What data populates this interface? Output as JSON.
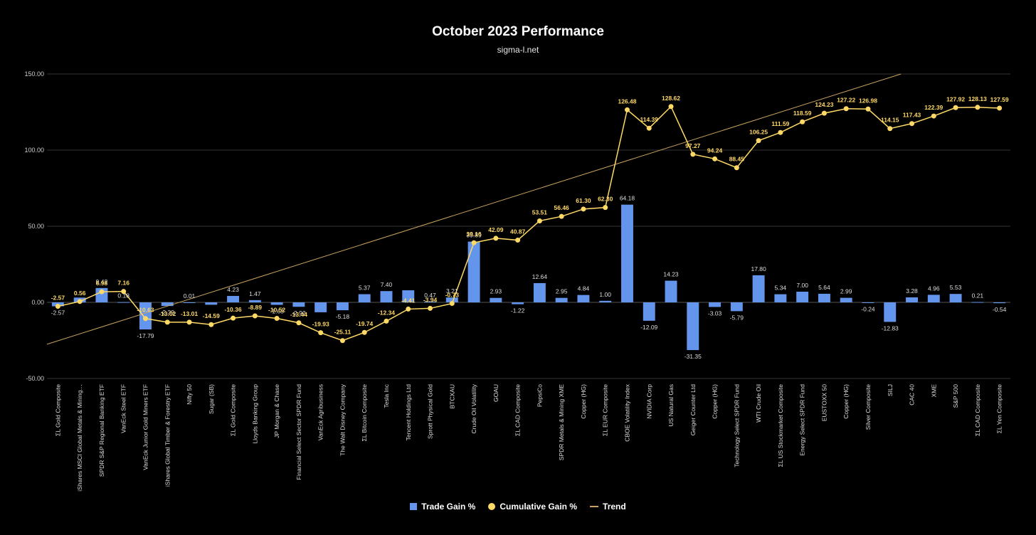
{
  "chart_data": {
    "type": "bar",
    "title": "October 2023 Performance",
    "subtitle": "sigma-l.net",
    "ylim": [
      -50,
      150
    ],
    "y_ticks": [
      "-50.00",
      "0.00",
      "50.00",
      "100.00",
      "150.00"
    ],
    "grid": "horizontal",
    "legend_position": "bottom",
    "categories": [
      "ΣL Gold Composite",
      "iShares MSCI Global Metals & Mining…",
      "SPDR S&P Regional Banking ETF",
      "VanEck Steel ETF",
      "VanEck Junior Gold Miners ETF",
      "iShares Global Timber & Forestry ETF",
      "Nifty 50",
      "Sugar (SB)",
      "ΣL Gold Composite",
      "Lloyds Banking Group",
      "JP Morgan & Chase",
      "Financial Select Sector SPDR Fund",
      "VanEck Agribusiness",
      "The Walt Disney Company",
      "ΣL Bitcoin Composite",
      "Tesla Inc",
      "Tencent Holdings Ltd",
      "Sprott Physical Gold",
      "BTCXAU",
      "Crude Oil Volatility",
      "GOAU",
      "ΣL CAD Composite",
      "PepsiCo",
      "SPDR Metals & Mining XME",
      "Copper (HG)",
      "ΣL EUR Composite",
      "CBOE Volatility Index",
      "NVIDIA Corp",
      "US Natural Gas",
      "Geiger Counter Ltd",
      "Copper (HG)",
      "Technology Select SPDR Fund",
      "WTI Crude Oil",
      "ΣL US Stockmarket Composite",
      "Energy Select SPDR Fund",
      "EUSTOXX 50",
      "Copper (HG)",
      "Silver Composite",
      "SILJ",
      "CAC 40",
      "XME",
      "S&P 500",
      "ΣL CAD Composite",
      "ΣL Yen Composite"
    ],
    "series": [
      {
        "name": "Trade Gain %",
        "type": "bar",
        "color": "#6495ED",
        "values": [
          -2.57,
          3.13,
          9.42,
          0.18,
          -17.79,
          -2.39,
          0.01,
          -1.57,
          4.23,
          1.47,
          -1.63,
          -2.92,
          -6.5,
          -5.18,
          5.37,
          7.4,
          7.93,
          0.47,
          3.21,
          39.89,
          2.93,
          -1.22,
          12.64,
          2.95,
          4.84,
          1.0,
          64.18,
          -12.09,
          14.23,
          -31.35,
          -3.03,
          -5.79,
          17.8,
          5.34,
          7.0,
          5.64,
          2.99,
          -0.24,
          -12.83,
          3.28,
          4.96,
          5.53,
          0.21,
          -0.54
        ],
        "labels": [
          "-2.57",
          "",
          "9.42",
          "0.18",
          "-17.79",
          "-2.39",
          "0.01",
          "",
          "4.23",
          "1.47",
          "-1.63",
          "-2.92",
          "",
          "-5.18",
          "5.37",
          "7.40",
          "",
          "0.47",
          "3.21",
          "39.89",
          "2.93",
          "-1.22",
          "12.64",
          "2.95",
          "4.84",
          "1.00",
          "64.18",
          "-12.09",
          "14.23",
          "-31.35",
          "-3.03",
          "-5.79",
          "17.80",
          "5.34",
          "7.00",
          "5.64",
          "2.99",
          "-0.24",
          "-12.83",
          "3.28",
          "4.96",
          "5.53",
          "0.21",
          "-0.54"
        ]
      },
      {
        "name": "Cumulative Gain %",
        "type": "line",
        "color": "#FFD966",
        "values": [
          -2.57,
          0.56,
          6.98,
          7.16,
          -10.63,
          -13.02,
          -13.01,
          -14.59,
          -10.36,
          -8.89,
          -10.52,
          -13.44,
          -19.93,
          -25.11,
          -19.74,
          -12.34,
          -4.41,
          -3.94,
          -0.73,
          39.16,
          42.09,
          40.87,
          53.51,
          56.46,
          61.3,
          62.3,
          126.48,
          114.39,
          128.62,
          97.27,
          94.24,
          88.45,
          106.25,
          111.59,
          118.59,
          124.23,
          127.22,
          126.98,
          114.15,
          117.43,
          122.39,
          127.92,
          128.13,
          127.59
        ],
        "labels": [
          "-2.57",
          "0.56",
          "6.98",
          "7.16",
          "-10.63",
          "-13.02",
          "-13.01",
          "-14.59",
          "-10.36",
          "-8.89",
          "-10.52",
          "-13.44",
          "-19.93",
          "-25.11",
          "-19.74",
          "-12.34",
          "-4.41",
          "-3.94",
          "-0.73",
          "39.16",
          "42.09",
          "40.87",
          "53.51",
          "56.46",
          "61.30",
          "62.30",
          "126.48",
          "114.39",
          "128.62",
          "97.27",
          "94.24",
          "88.45",
          "106.25",
          "111.59",
          "118.59",
          "124.23",
          "127.22",
          "126.98",
          "114.15",
          "117.43",
          "122.39",
          "127.92",
          "128.13",
          "127.59"
        ]
      },
      {
        "name": "Trend",
        "type": "trendline",
        "color": "#C9A25E",
        "start_value": -27.5,
        "end_value": 150
      }
    ]
  }
}
